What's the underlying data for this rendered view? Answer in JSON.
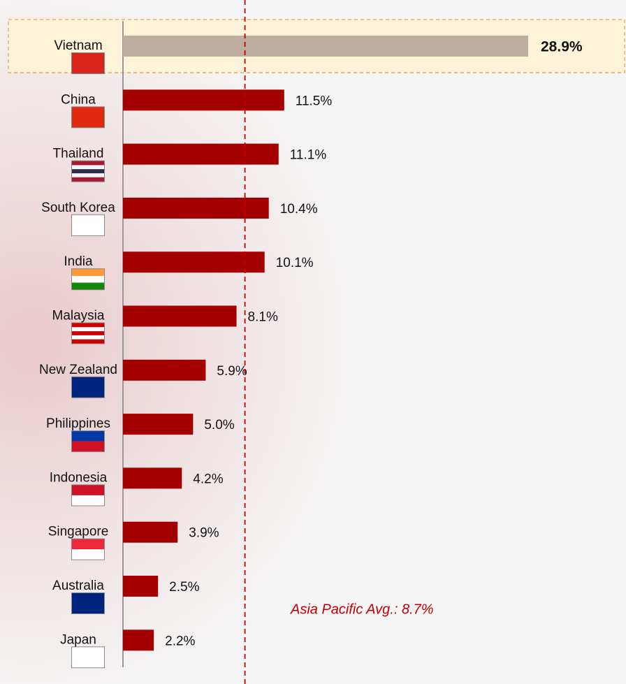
{
  "chart_data": {
    "type": "hbar",
    "categories": [
      "Vietnam",
      "China",
      "Thailand",
      "South Korea",
      "India",
      "Malaysia",
      "New Zealand",
      "Philippines",
      "Indonesia",
      "Singapore",
      "Australia",
      "Japan"
    ],
    "values": [
      28.9,
      11.5,
      11.1,
      10.4,
      10.1,
      8.1,
      5.9,
      5.0,
      4.2,
      3.9,
      2.5,
      2.2
    ],
    "value_labels": [
      "28.9%",
      "11.5%",
      "11.1%",
      "10.4%",
      "10.1%",
      "8.1%",
      "5.9%",
      "5.0%",
      "4.2%",
      "3.9%",
      "2.5%",
      "2.2%"
    ],
    "color": "#a50000",
    "highlight_category": "Vietnam",
    "highlight_color": "#bfaea0",
    "xlim": [
      0,
      36
    ],
    "average": 8.7,
    "average_label": "Asia Pacific Avg.: 8.7%",
    "average_color": "#c00000"
  }
}
